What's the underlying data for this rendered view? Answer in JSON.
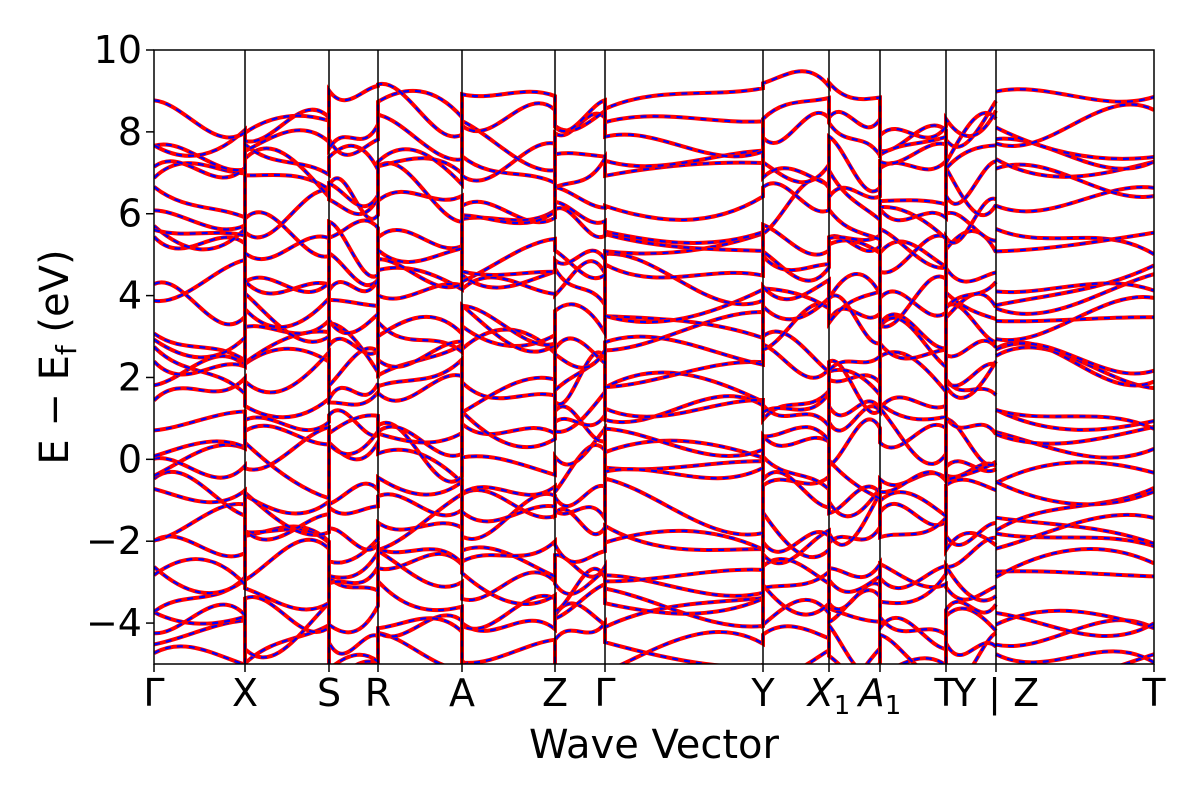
{
  "chart_data": {
    "type": "line",
    "title": "",
    "xlabel": "Wave Vector",
    "ylabel_main": "E − E",
    "ylabel_sub": "f",
    "ylabel_unit": " (eV)",
    "ylim": [
      -5,
      10
    ],
    "yticks": [
      {
        "value": -4,
        "label": "−4"
      },
      {
        "value": -2,
        "label": "−2"
      },
      {
        "value": 0,
        "label": "0"
      },
      {
        "value": 2,
        "label": "2"
      },
      {
        "value": 4,
        "label": "4"
      },
      {
        "value": 6,
        "label": "6"
      },
      {
        "value": 8,
        "label": "8"
      },
      {
        "value": 10,
        "label": "10"
      }
    ],
    "high_symmetry_points": [
      {
        "label": "Γ",
        "sub": "",
        "pos": 0.0
      },
      {
        "label": "X",
        "sub": "",
        "pos": 0.091
      },
      {
        "label": "S",
        "sub": "",
        "pos": 0.175
      },
      {
        "label": "R",
        "sub": "",
        "pos": 0.224
      },
      {
        "label": "A",
        "sub": "",
        "pos": 0.308
      },
      {
        "label": "Z",
        "sub": "",
        "pos": 0.401
      },
      {
        "label": "Γ",
        "sub": "",
        "pos": 0.451
      },
      {
        "label": "Y",
        "sub": "",
        "pos": 0.609
      },
      {
        "label": "X",
        "sub": "1",
        "pos": 0.675
      },
      {
        "label": "A",
        "sub": "1",
        "pos": 0.726
      },
      {
        "label": "T",
        "sub": "",
        "pos": 0.792
      },
      {
        "label": "Y | Z",
        "sub": "",
        "pos": 0.842
      },
      {
        "label": "T",
        "sub": "",
        "pos": 1.0
      }
    ],
    "series_style": [
      {
        "color": "#ff0000",
        "style": "solid"
      },
      {
        "color": "#0000ff",
        "style": "dashed"
      }
    ],
    "grid": false,
    "legend": "none"
  }
}
